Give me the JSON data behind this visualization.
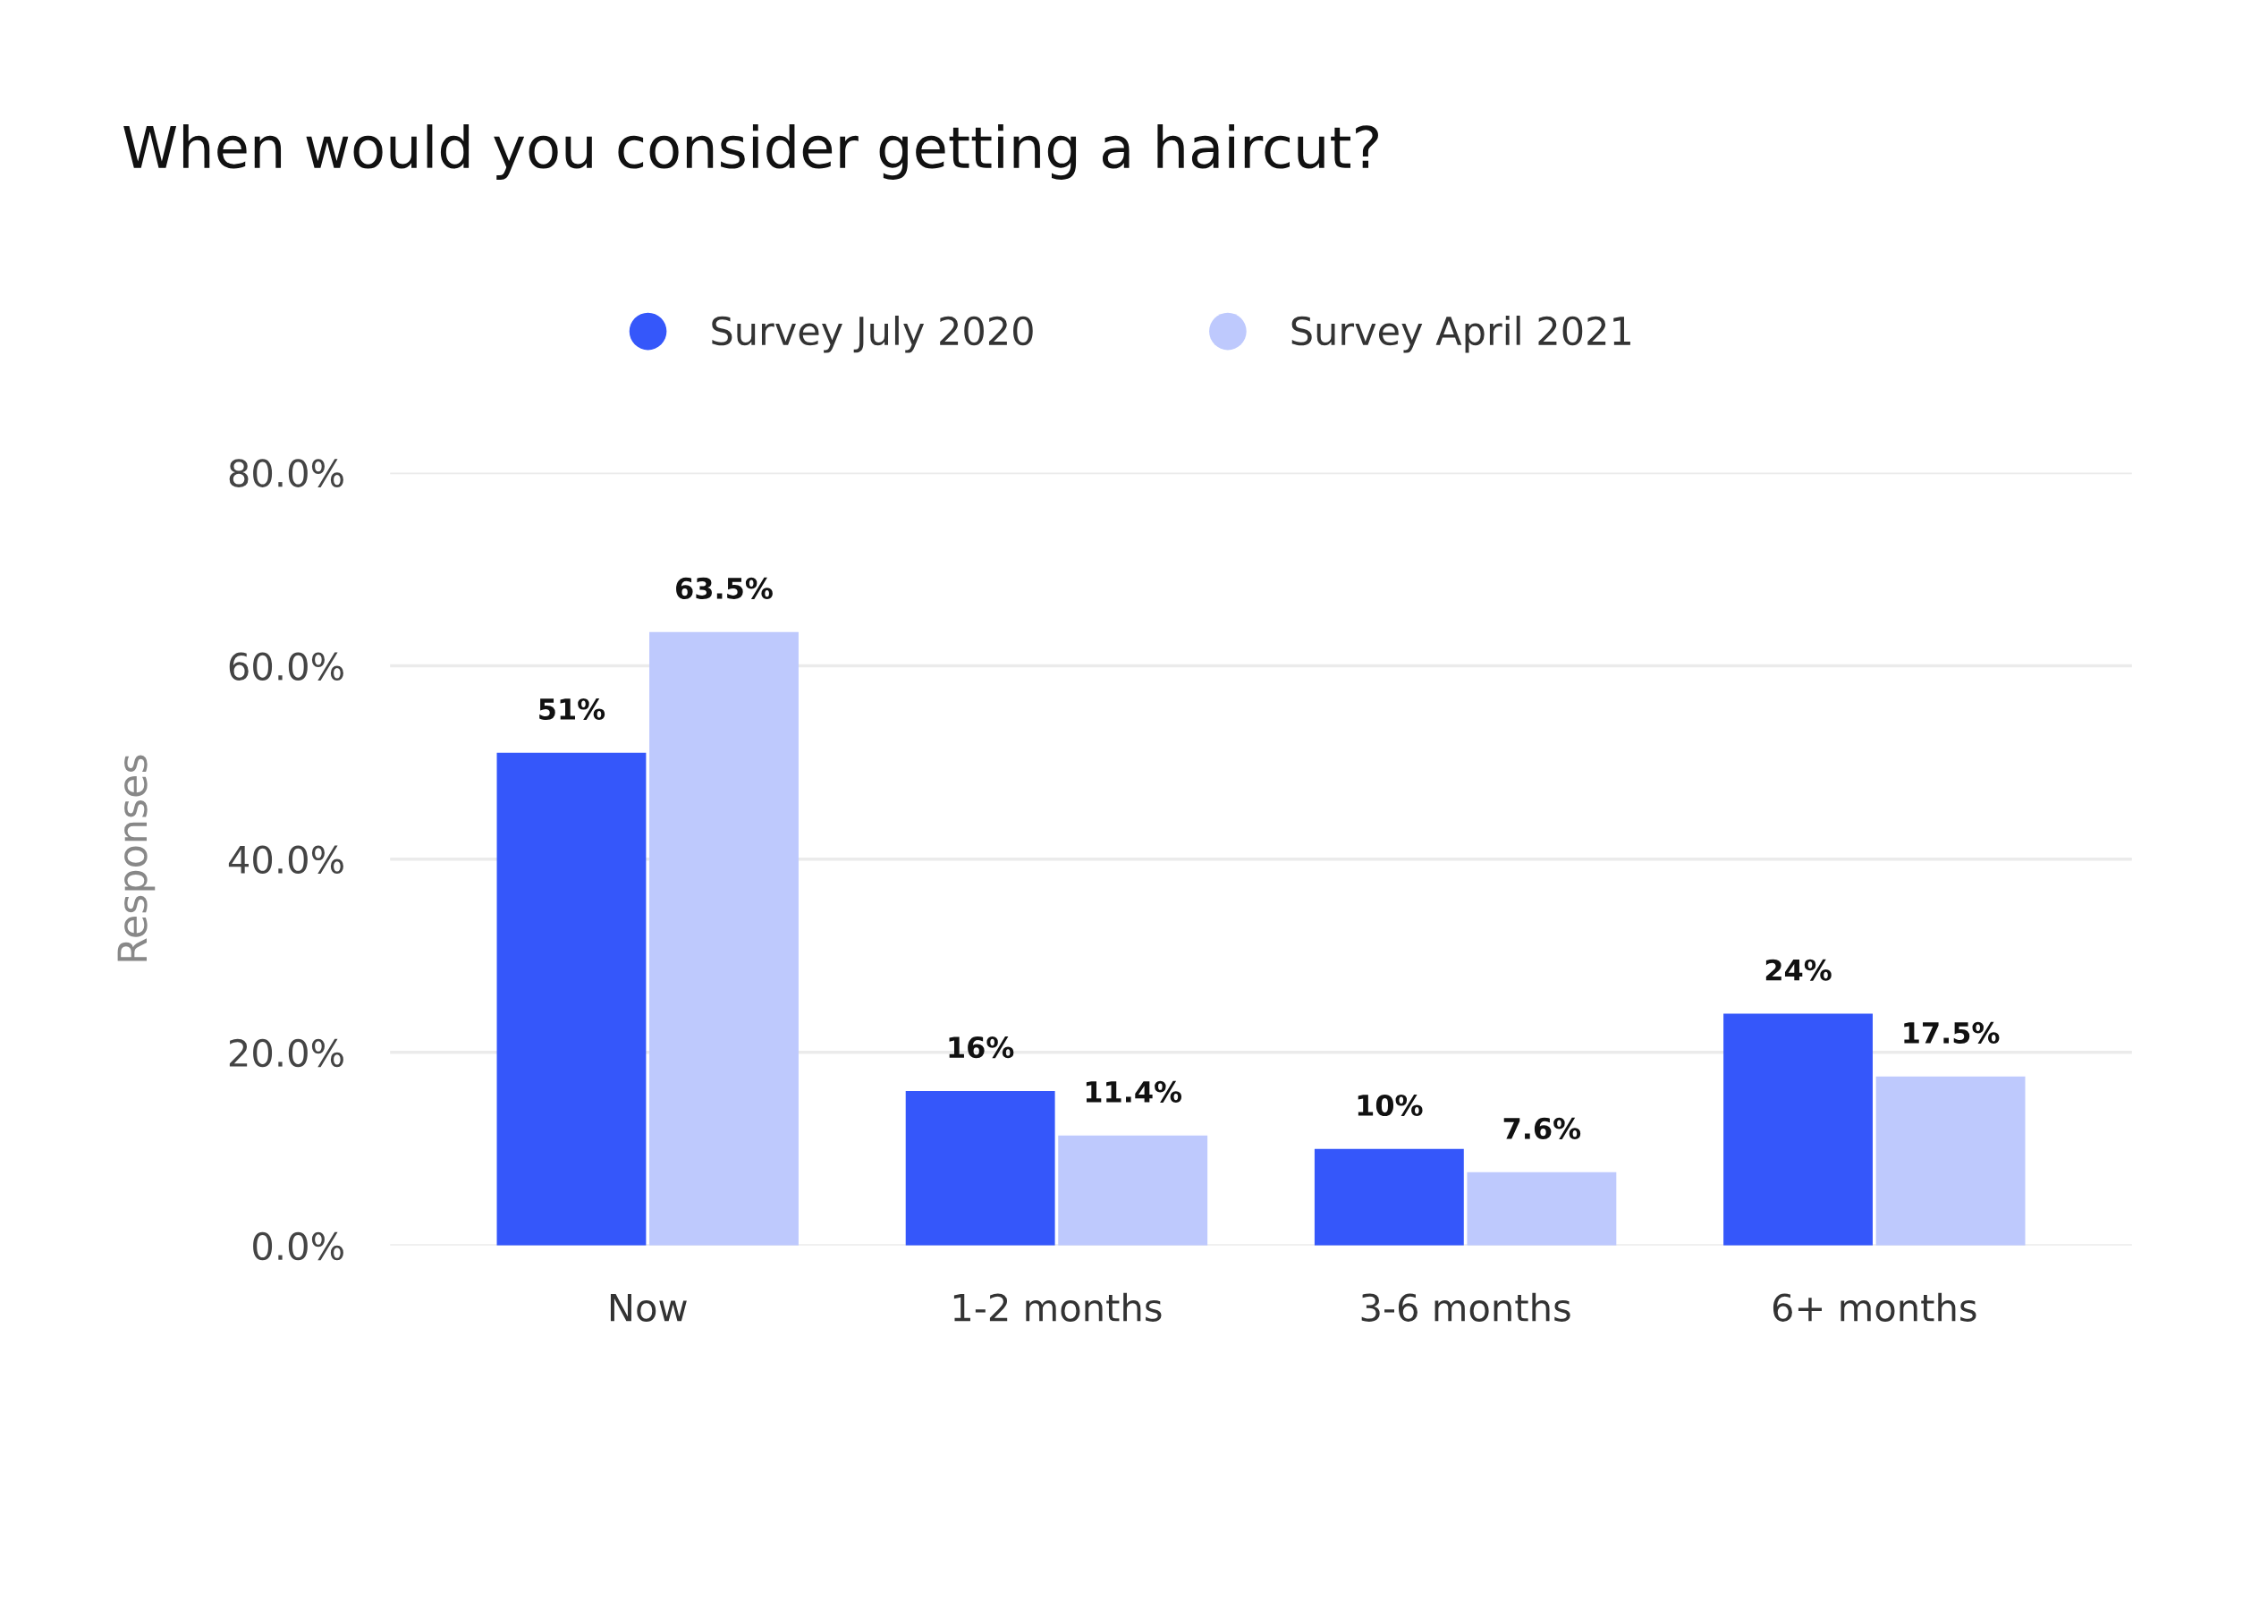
{
  "chart_data": {
    "type": "bar",
    "title": "When would you consider getting a haircut?",
    "ylabel": "Responses",
    "categories": [
      "Now",
      "1-2 months",
      "3-6 months",
      "6+ months"
    ],
    "series": [
      {
        "name": "Survey July 2020",
        "color": "#3557fa",
        "values": [
          51,
          16,
          10,
          24
        ],
        "value_labels": [
          "51%",
          "16%",
          "10%",
          "24%"
        ]
      },
      {
        "name": "Survey April 2021",
        "color": "#bec9fd",
        "values": [
          63.5,
          11.4,
          7.6,
          17.5
        ],
        "value_labels": [
          "63.5%",
          "11.4%",
          "7.6%",
          "17.5%"
        ]
      }
    ],
    "ylim": [
      0,
      80
    ],
    "yticks": [
      {
        "value": 0,
        "label": "0.0%"
      },
      {
        "value": 20,
        "label": "20.0%"
      },
      {
        "value": 40,
        "label": "40.0%"
      },
      {
        "value": 60,
        "label": "60.0%"
      },
      {
        "value": 80,
        "label": "80.0%"
      }
    ],
    "grid": "y",
    "legend": "top",
    "marker": "circle"
  }
}
